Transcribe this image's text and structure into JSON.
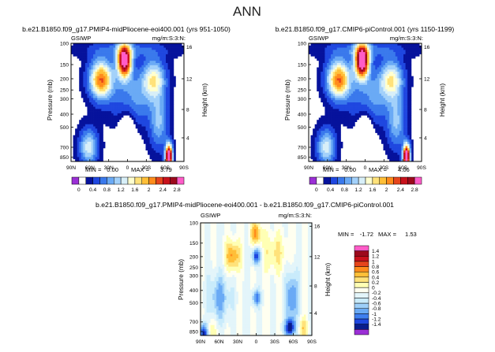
{
  "page_title": "ANN",
  "colors": {
    "shared_scale": [
      "#9b2fd6",
      "#ffffff",
      "#06129c",
      "#1f47e0",
      "#3a79ec",
      "#6aaaf5",
      "#a3d1fa",
      "#d8eff8",
      "#ffffd0",
      "#ffe27a",
      "#ffbf38",
      "#ff8c1c",
      "#e6451c",
      "#c8121c",
      "#9c0a1c",
      "#ff5cc8"
    ],
    "diff_scale": [
      "#9b2fd6",
      "#0a1d8c",
      "#1f47e0",
      "#3f7ff0",
      "#6aaaf5",
      "#9dcff9",
      "#c9ebfb",
      "#e3f5fa",
      "#fffff0",
      "#ffffb4",
      "#ffe27a",
      "#ffbf38",
      "#ff8c1c",
      "#e6451c",
      "#c8121c",
      "#9c0a1c",
      "#ff5cc8"
    ]
  },
  "chart_data": [
    {
      "type": "heatmap",
      "title": "b.e21.B1850.f09_g17.PMIP4-midPliocene-eoi400.001 (yrs 951-1050)",
      "left_label": "GSIWP",
      "right_label": "mg/m:S:3:N:",
      "ylabel": "Pressure (mb)",
      "y2label": "Height (km)",
      "x_ticks": [
        "90N",
        "60N",
        "30N",
        "0",
        "30S",
        "60S",
        "90S"
      ],
      "y_ticks": [
        "100",
        "150",
        "200",
        "250",
        "300",
        "400",
        "500",
        "700",
        "850"
      ],
      "y2_ticks": [
        "16",
        "12",
        "8",
        "4"
      ],
      "min_label": "MIN =",
      "min_value": "0.00",
      "max_label": "MAX =",
      "max_value": "3.79",
      "colorbar_ticks": [
        "0",
        "0.4",
        "0.8",
        "1.2",
        "1.6",
        "2",
        "2.4",
        "2.8"
      ]
    },
    {
      "type": "heatmap",
      "title": "b.e21.B1850.f09_g17.CMIP6-piControl.001 (yrs 1150-1199)",
      "left_label": "GSIWP",
      "right_label": "mg/m:S:3:N:",
      "ylabel": "Pressure (mb)",
      "y2label": "Height (km)",
      "x_ticks": [
        "90N",
        "60N",
        "30N",
        "0",
        "30S",
        "60S",
        "90S"
      ],
      "y_ticks": [
        "100",
        "150",
        "200",
        "250",
        "300",
        "400",
        "500",
        "700",
        "850"
      ],
      "y2_ticks": [
        "16",
        "12",
        "8",
        "4"
      ],
      "min_label": "MIN =",
      "min_value": "0.00",
      "max_label": "MAX =",
      "max_value": "4.06",
      "colorbar_ticks": [
        "0",
        "0.4",
        "0.8",
        "1.2",
        "1.6",
        "2",
        "2.4",
        "2.8"
      ]
    },
    {
      "type": "heatmap",
      "title": "b.e21.B1850.f09_g17.PMIP4-midPliocene-eoi400.001 - b.e21.B1850.f09_g17.CMIP6-piControl.001",
      "left_label": "GSIWP",
      "right_label": "mg/m:S:3:N:",
      "ylabel": "Pressure (mb)",
      "y2label": "Height (km)",
      "x_ticks": [
        "90N",
        "60N",
        "30N",
        "0",
        "30S",
        "60S",
        "90S"
      ],
      "y_ticks": [
        "100",
        "150",
        "200",
        "250",
        "300",
        "400",
        "500",
        "700",
        "850"
      ],
      "y2_ticks": [
        "16",
        "12",
        "8",
        "4"
      ],
      "min_label": "MIN =",
      "min_value": "-1.72",
      "max_label": "MAX =",
      "max_value": "1.53",
      "colorbar_ticks": [
        "1.4",
        "1.2",
        "1",
        "0.8",
        "0.6",
        "0.4",
        "0.2",
        "0",
        "-0.2",
        "-0.4",
        "-0.6",
        "-0.8",
        "-1",
        "-1.2",
        "-1.4"
      ]
    }
  ]
}
